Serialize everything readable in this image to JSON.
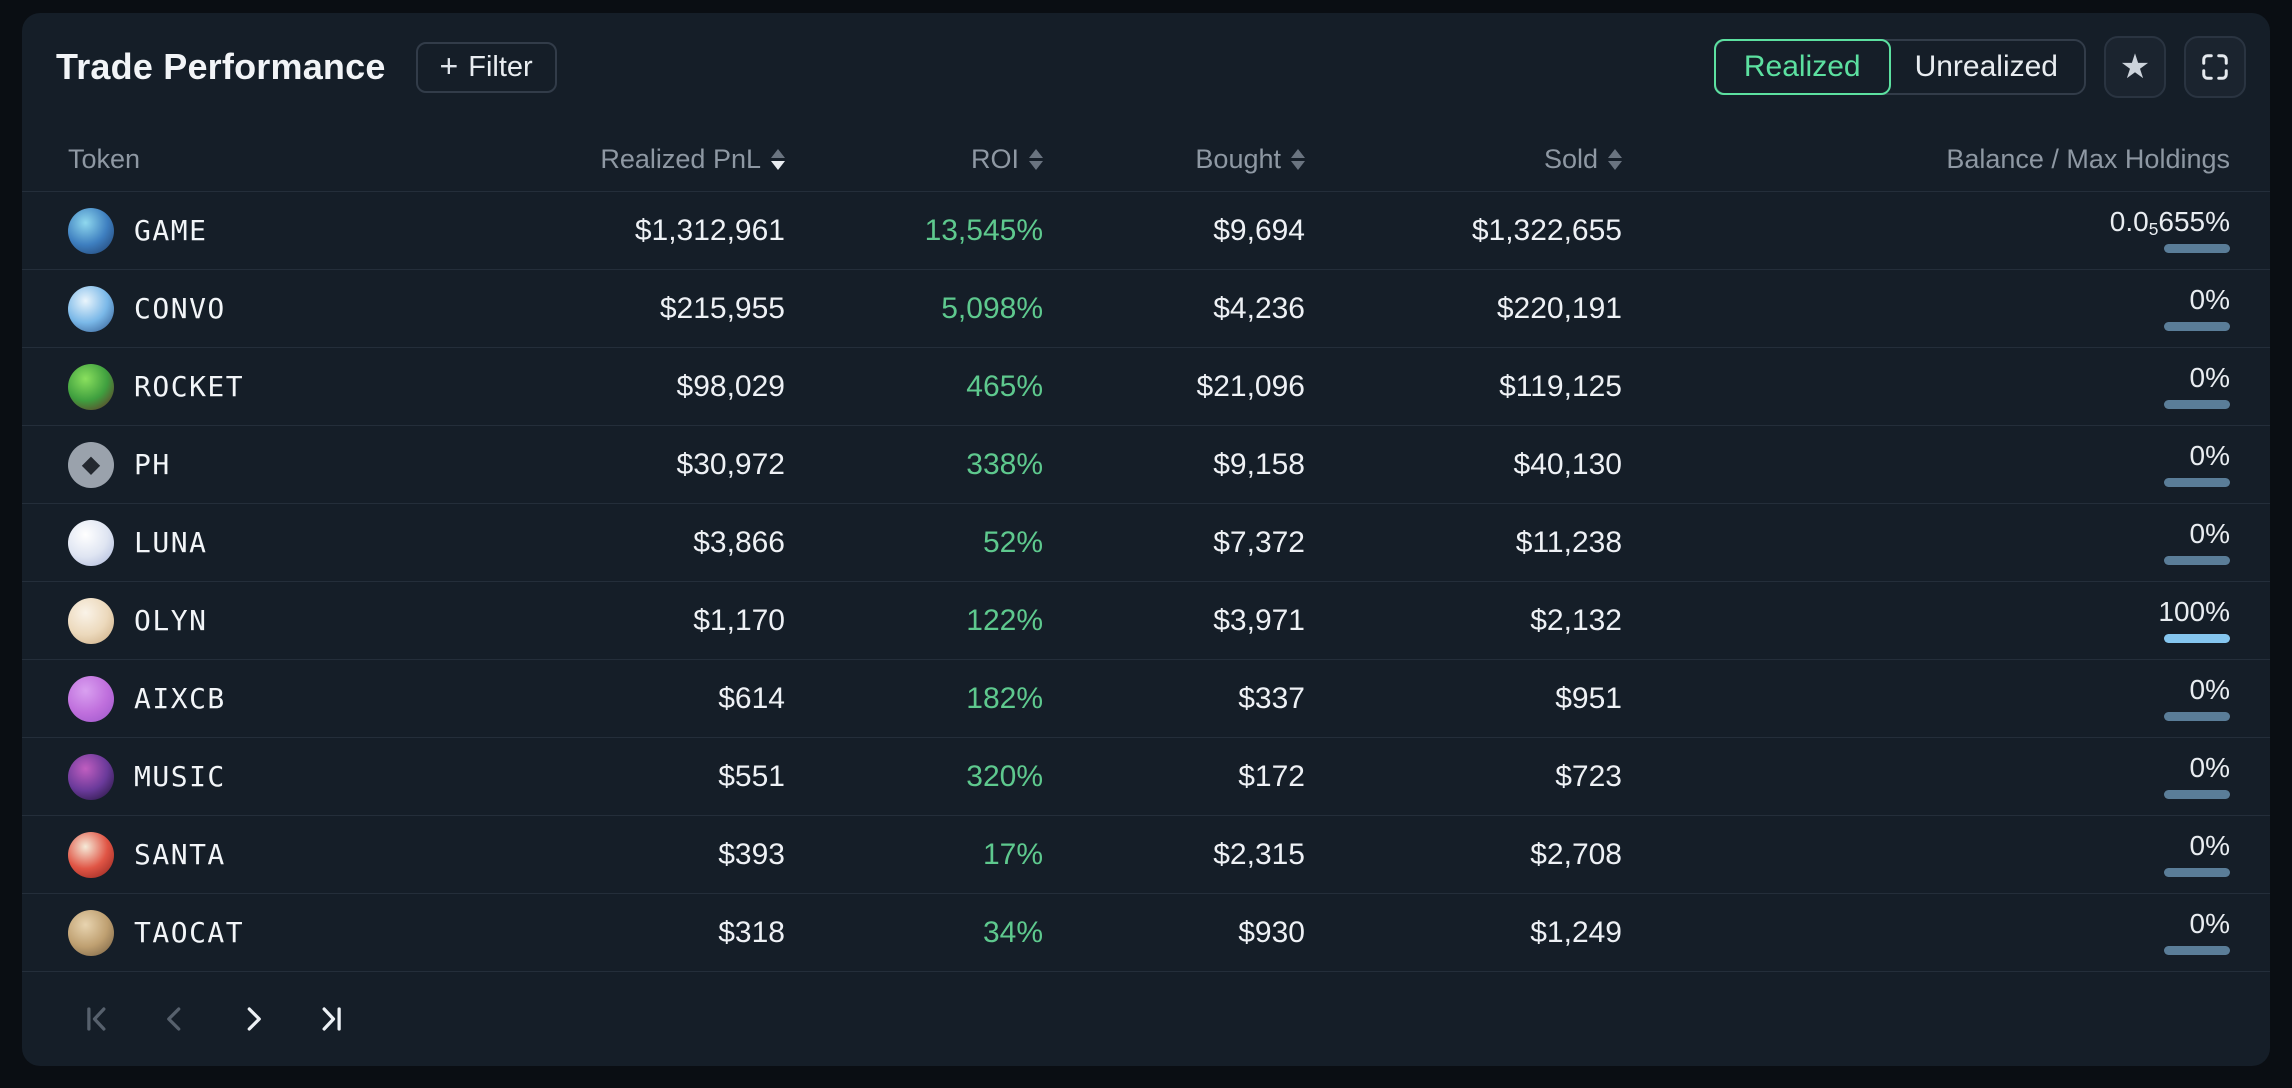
{
  "header": {
    "title": "Trade Performance",
    "filter": {
      "plus": "+",
      "label": "Filter"
    },
    "toggle": {
      "realized": "Realized",
      "unrealized": "Unrealized"
    }
  },
  "table": {
    "columns": {
      "token": "Token",
      "pnl": "Realized PnL",
      "roi": "ROI",
      "bought": "Bought",
      "sold": "Sold",
      "balance": "Balance / Max Holdings"
    },
    "sort": {
      "column": "Realized PnL",
      "direction": "desc"
    },
    "rows": [
      {
        "token": "GAME",
        "pnl": "$1,312,961",
        "roi": "13,545%",
        "bought": "$9,694",
        "sold": "$1,322,655",
        "balance": {
          "prefix": "0.0",
          "sub": "5",
          "suffix": "655%",
          "fill_pct": 0
        },
        "avatar": {
          "colors": [
            "#8fd8ee",
            "#3e7fc0",
            "#1d3a66"
          ]
        }
      },
      {
        "token": "CONVO",
        "pnl": "$215,955",
        "roi": "5,098%",
        "bought": "$4,236",
        "sold": "$220,191",
        "balance": {
          "prefix": "0%",
          "sub": "",
          "suffix": "",
          "fill_pct": 0
        },
        "avatar": {
          "colors": [
            "#eaf5fc",
            "#7ab8e8",
            "#2c5288"
          ]
        }
      },
      {
        "token": "ROCKET",
        "pnl": "$98,029",
        "roi": "465%",
        "bought": "$21,096",
        "sold": "$119,125",
        "balance": {
          "prefix": "0%",
          "sub": "",
          "suffix": "",
          "fill_pct": 0
        },
        "avatar": {
          "colors": [
            "#8ae05e",
            "#3f9f3f",
            "#6b2424"
          ]
        }
      },
      {
        "token": "PH",
        "pnl": "$30,972",
        "roi": "338%",
        "bought": "$9,158",
        "sold": "$40,130",
        "balance": {
          "prefix": "0%",
          "sub": "",
          "suffix": "",
          "fill_pct": 0
        },
        "avatar": {
          "colors": [
            "#9aa2ac"
          ],
          "glyph": "◆"
        }
      },
      {
        "token": "LUNA",
        "pnl": "$3,866",
        "roi": "52%",
        "bought": "$7,372",
        "sold": "$11,238",
        "balance": {
          "prefix": "0%",
          "sub": "",
          "suffix": "",
          "fill_pct": 0
        },
        "avatar": {
          "colors": [
            "#ffffff",
            "#dfe5f2",
            "#a8b4d8"
          ]
        }
      },
      {
        "token": "OLYN",
        "pnl": "$1,170",
        "roi": "122%",
        "bought": "$3,971",
        "sold": "$2,132",
        "balance": {
          "prefix": "100%",
          "sub": "",
          "suffix": "",
          "fill_pct": 100
        },
        "avatar": {
          "colors": [
            "#faf3e8",
            "#ecd9bc",
            "#c8a87e"
          ]
        }
      },
      {
        "token": "AIXCB",
        "pnl": "$614",
        "roi": "182%",
        "bought": "$337",
        "sold": "$951",
        "balance": {
          "prefix": "0%",
          "sub": "",
          "suffix": "",
          "fill_pct": 0
        },
        "avatar": {
          "colors": [
            "#d9a0f0",
            "#c070dd",
            "#9a55c9"
          ]
        }
      },
      {
        "token": "MUSIC",
        "pnl": "$551",
        "roi": "320%",
        "bought": "$172",
        "sold": "$723",
        "balance": {
          "prefix": "0%",
          "sub": "",
          "suffix": "",
          "fill_pct": 0
        },
        "avatar": {
          "colors": [
            "#c05ec0",
            "#6a3a9a",
            "#1a1030"
          ]
        }
      },
      {
        "token": "SANTA",
        "pnl": "$393",
        "roi": "17%",
        "bought": "$2,315",
        "sold": "$2,708",
        "balance": {
          "prefix": "0%",
          "sub": "",
          "suffix": "",
          "fill_pct": 0
        },
        "avatar": {
          "colors": [
            "#f5ead8",
            "#e05545",
            "#8a1f1a"
          ]
        }
      },
      {
        "token": "TAOCAT",
        "pnl": "$318",
        "roi": "34%",
        "bought": "$930",
        "sold": "$1,249",
        "balance": {
          "prefix": "0%",
          "sub": "",
          "suffix": "",
          "fill_pct": 0
        },
        "avatar": {
          "colors": [
            "#e8d4b0",
            "#bfa071",
            "#6f5a3e"
          ]
        }
      }
    ]
  },
  "pagination": {
    "first_enabled": false,
    "prev_enabled": false,
    "next_enabled": true,
    "last_enabled": true
  },
  "colors": {
    "page_bg": "#0a0e13",
    "panel_bg": "#151e28",
    "separator": "#242e3a",
    "header_text": "#8e98a3",
    "text": "#eef1f5",
    "accent_green": "#5ce0a0",
    "roi_green": "#5ec98e",
    "bar_track": "#5a7d98",
    "bar_fill": "#85c6ef",
    "border_subtle": "#323c49",
    "icon_disabled": "#57616d"
  }
}
